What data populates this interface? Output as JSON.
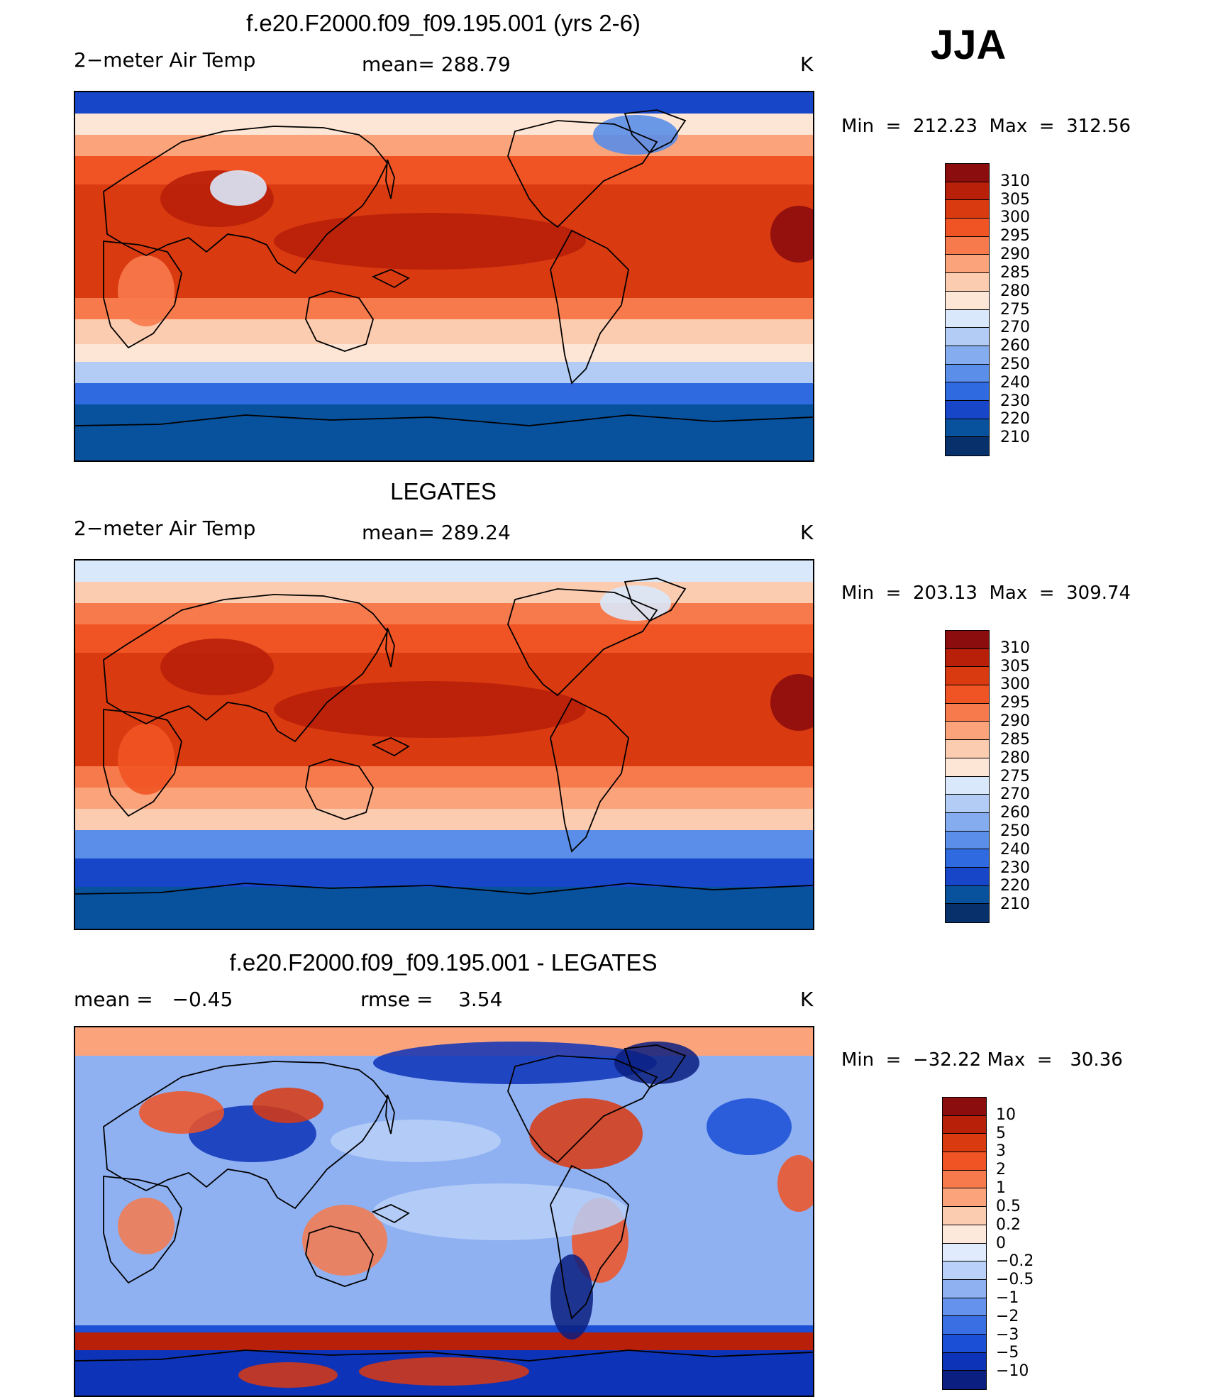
{
  "season": "JJA",
  "palette_temp": [
    "#08306b",
    "#08519c",
    "#1746c9",
    "#2f6ae0",
    "#5a8ee8",
    "#85acef",
    "#b2ccf5",
    "#d9e8fb",
    "#fde6d6",
    "#fcccb0",
    "#fba47c",
    "#f77a4c",
    "#f15424",
    "#da3a10",
    "#b8200a",
    "#8c0d0d"
  ],
  "palette_diff": [
    "#0a1f80",
    "#0d33b8",
    "#1a4fd6",
    "#3a6fe3",
    "#6592ec",
    "#8fb1f2",
    "#b9d0f8",
    "#e0ecfd",
    "#fde8dc",
    "#fcccb0",
    "#fba47c",
    "#f77a4c",
    "#f15424",
    "#da3a10",
    "#b8200a",
    "#8c0d0d"
  ],
  "panels": [
    {
      "id": "model",
      "title": "f.e20.F2000.f09_f09.195.001 (yrs 2-6)",
      "variable": "2−meter Air Temp",
      "stat1_label": "mean=",
      "stat1_value": "288.79",
      "stat2_label": "",
      "stat2_value": "",
      "units": "K",
      "min_label": "Min",
      "min_value": "212.23",
      "max_label": "Max",
      "max_value": "312.56",
      "colorbar_kind": "temp",
      "colorbar_labels": [
        "310",
        "305",
        "300",
        "295",
        "290",
        "285",
        "280",
        "275",
        "270",
        "260",
        "250",
        "240",
        "230",
        "220",
        "210"
      ]
    },
    {
      "id": "obs",
      "title": "LEGATES",
      "variable": "2−meter Air Temp",
      "stat1_label": "mean=",
      "stat1_value": "289.24",
      "stat2_label": "",
      "stat2_value": "",
      "units": "K",
      "min_label": "Min",
      "min_value": "203.13",
      "max_label": "Max",
      "max_value": "309.74",
      "colorbar_kind": "temp",
      "colorbar_labels": [
        "310",
        "305",
        "300",
        "295",
        "290",
        "285",
        "280",
        "275",
        "270",
        "260",
        "250",
        "240",
        "230",
        "220",
        "210"
      ]
    },
    {
      "id": "diff",
      "title": "f.e20.F2000.f09_f09.195.001 - LEGATES",
      "variable": "",
      "stat1_label": "mean =",
      "stat1_value": "−0.45",
      "stat2_label": "rmse =",
      "stat2_value": "3.54",
      "units": "K",
      "min_label": "Min",
      "min_value": "−32.22",
      "max_label": "Max",
      "max_value": "30.36",
      "colorbar_kind": "diff",
      "colorbar_labels": [
        "10",
        "5",
        "3",
        "2",
        "1",
        "0.5",
        "0.2",
        "0",
        "−0.2",
        "−0.5",
        "−1",
        "−2",
        "−3",
        "−5",
        "−10"
      ]
    }
  ]
}
